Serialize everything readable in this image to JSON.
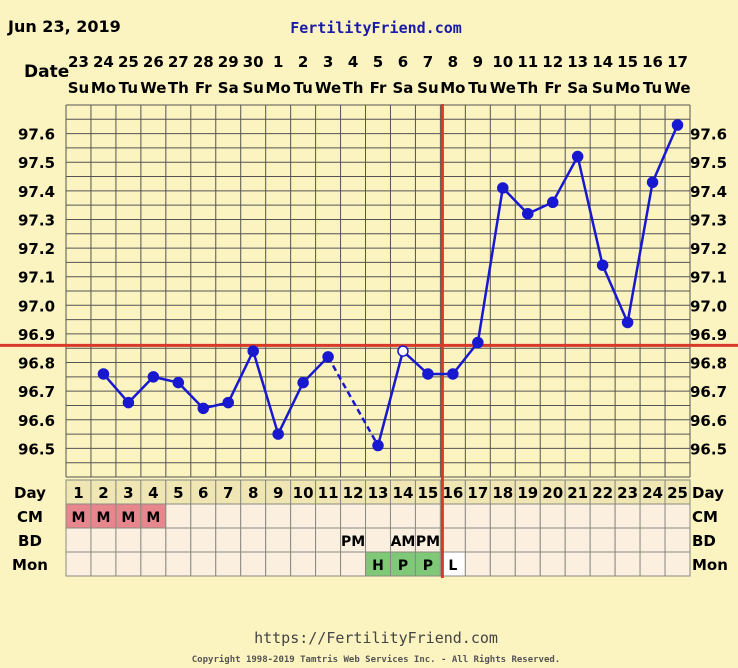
{
  "header": {
    "date": "Jun 23, 2019",
    "site": "FertilityFriend.com"
  },
  "footer": {
    "url": "https://FertilityFriend.com",
    "copyright": "Copyright 1998-2019 Tamtris Web Services Inc. - All Rights Reserved."
  },
  "colors": {
    "background": "#fbf3c0",
    "line": "#1818d0",
    "coverline": "#d83a2a",
    "mucus": "#e8868e",
    "test": "#7ec878"
  },
  "chart_data": {
    "type": "line",
    "row_label_date": "Date",
    "dates": [
      "23",
      "24",
      "25",
      "26",
      "27",
      "28",
      "29",
      "30",
      "1",
      "2",
      "3",
      "4",
      "5",
      "6",
      "7",
      "8",
      "9",
      "10",
      "11",
      "12",
      "13",
      "14",
      "15",
      "16",
      "17"
    ],
    "weekdays": [
      "Su",
      "Mo",
      "Tu",
      "We",
      "Th",
      "Fr",
      "Sa",
      "Su",
      "Mo",
      "Tu",
      "We",
      "Th",
      "Fr",
      "Sa",
      "Su",
      "Mo",
      "Tu",
      "We",
      "Th",
      "Fr",
      "Sa",
      "Su",
      "Mo",
      "Tu",
      "We"
    ],
    "ylim": [
      96.4,
      97.7
    ],
    "y_ticks": [
      "97.6",
      "97.5",
      "97.4",
      "97.3",
      "97.2",
      "97.1",
      "97.0",
      "96.9",
      "96.8",
      "96.7",
      "96.6",
      "96.5"
    ],
    "series": [
      {
        "x": [
          2,
          3,
          4,
          5,
          6,
          7,
          8,
          9,
          10,
          11,
          13,
          14,
          15,
          16,
          17,
          18,
          19,
          20,
          21,
          22,
          23,
          24,
          25
        ],
        "y": [
          96.76,
          96.66,
          96.75,
          96.73,
          96.64,
          96.66,
          96.84,
          96.55,
          96.73,
          96.82,
          96.51,
          96.84,
          96.76,
          96.76,
          96.87,
          97.41,
          97.32,
          97.36,
          97.52,
          97.14,
          96.94,
          97.43,
          97.63
        ]
      }
    ],
    "dashed_segment": [
      11,
      13
    ],
    "open_points": [
      14
    ],
    "coverline": 96.86,
    "ovulation_day": 16,
    "grid": true,
    "rows": {
      "day": {
        "label": "Day",
        "values": [
          "1",
          "2",
          "3",
          "4",
          "5",
          "6",
          "7",
          "8",
          "9",
          "10",
          "11",
          "12",
          "13",
          "14",
          "15",
          "16",
          "17",
          "18",
          "19",
          "20",
          "21",
          "22",
          "23",
          "24",
          "25"
        ]
      },
      "cm": {
        "label": "CM",
        "values": [
          "M",
          "M",
          "M",
          "M",
          "",
          "",
          "",
          "",
          "",
          "",
          "",
          "",
          "",
          "",
          "",
          "",
          "",
          "",
          "",
          "",
          "",
          "",
          "",
          "",
          ""
        ]
      },
      "bd": {
        "label": "BD",
        "values": [
          "",
          "",
          "",
          "",
          "",
          "",
          "",
          "",
          "",
          "",
          "",
          "PM",
          "",
          "AM",
          "PM",
          "",
          "",
          "",
          "",
          "",
          "",
          "",
          "",
          "",
          ""
        ]
      },
      "mon": {
        "label": "Mon",
        "values": [
          "",
          "",
          "",
          "",
          "",
          "",
          "",
          "",
          "",
          "",
          "",
          "",
          "H",
          "P",
          "P",
          "L",
          "",
          "",
          "",
          "",
          "",
          "",
          "",
          "",
          ""
        ]
      }
    }
  }
}
